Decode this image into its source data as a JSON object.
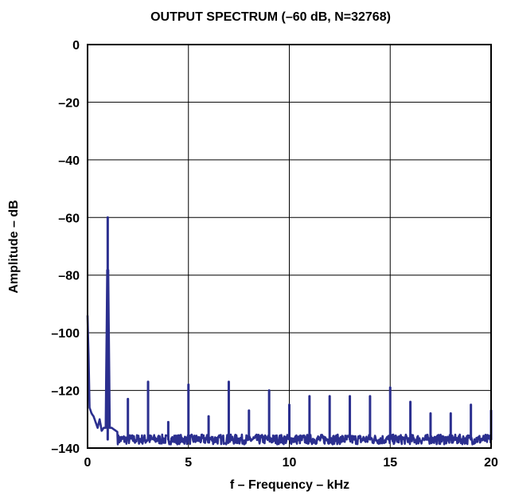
{
  "chart_data": {
    "type": "line",
    "title": "OUTPUT SPECTRUM (–60 dB, N=32768)",
    "xlabel": "f – Frequency – kHz",
    "ylabel": "Amplitude – dB",
    "xlim": [
      0,
      20
    ],
    "ylim": [
      -140,
      0
    ],
    "x_ticks": [
      0,
      5,
      10,
      15,
      20
    ],
    "y_ticks": [
      0,
      -20,
      -40,
      -60,
      -80,
      -100,
      -120,
      -140
    ],
    "x_tick_labels": [
      "0",
      "5",
      "10",
      "15",
      "20"
    ],
    "y_tick_labels": [
      "0",
      "–20",
      "–40",
      "–60",
      "–80",
      "–100",
      "–120",
      "–140"
    ],
    "grid": true,
    "line_color": "#2b2f8f",
    "noise_floor_db": -137,
    "series": [
      {
        "name": "",
        "x": [
          0.0,
          0.05,
          0.1,
          0.2,
          0.3,
          0.4,
          0.5,
          0.6,
          0.7,
          0.8,
          0.9,
          1.0,
          1.1,
          1.2,
          1.4,
          1.6,
          1.8,
          2.0,
          2.2,
          2.6,
          3.0,
          3.4,
          3.8,
          4.2,
          5.0,
          6.0,
          7.0,
          8.0,
          9.0,
          10.0,
          11.0,
          12.0,
          13.0,
          14.0,
          15.0,
          16.0,
          17.0,
          18.0,
          19.0,
          20.0
        ],
        "y": [
          -94,
          -108,
          -126,
          -128,
          -129,
          -131,
          -133,
          -130,
          -134,
          -133,
          -133,
          -60,
          -133,
          -133,
          -134,
          -135,
          -135,
          -123,
          -136,
          -136,
          -117,
          -137,
          -131,
          -137,
          -118,
          -129,
          -117,
          -127,
          -120,
          -125,
          -122,
          -122,
          -122,
          -122,
          -119,
          -124,
          -128,
          -128,
          -125,
          -127
        ]
      }
    ],
    "harmonics": [
      {
        "x": 1.0,
        "y": -60
      },
      {
        "x": 2.0,
        "y": -123
      },
      {
        "x": 3.0,
        "y": -117
      },
      {
        "x": 4.0,
        "y": -131
      },
      {
        "x": 5.0,
        "y": -118
      },
      {
        "x": 6.0,
        "y": -129
      },
      {
        "x": 7.0,
        "y": -117
      },
      {
        "x": 8.0,
        "y": -127
      },
      {
        "x": 9.0,
        "y": -120
      },
      {
        "x": 10.0,
        "y": -125
      },
      {
        "x": 11.0,
        "y": -122
      },
      {
        "x": 12.0,
        "y": -122
      },
      {
        "x": 13.0,
        "y": -122
      },
      {
        "x": 14.0,
        "y": -122
      },
      {
        "x": 15.0,
        "y": -119
      },
      {
        "x": 16.0,
        "y": -124
      },
      {
        "x": 17.0,
        "y": -128
      },
      {
        "x": 18.0,
        "y": -128
      },
      {
        "x": 19.0,
        "y": -125
      },
      {
        "x": 20.0,
        "y": -127
      }
    ]
  }
}
